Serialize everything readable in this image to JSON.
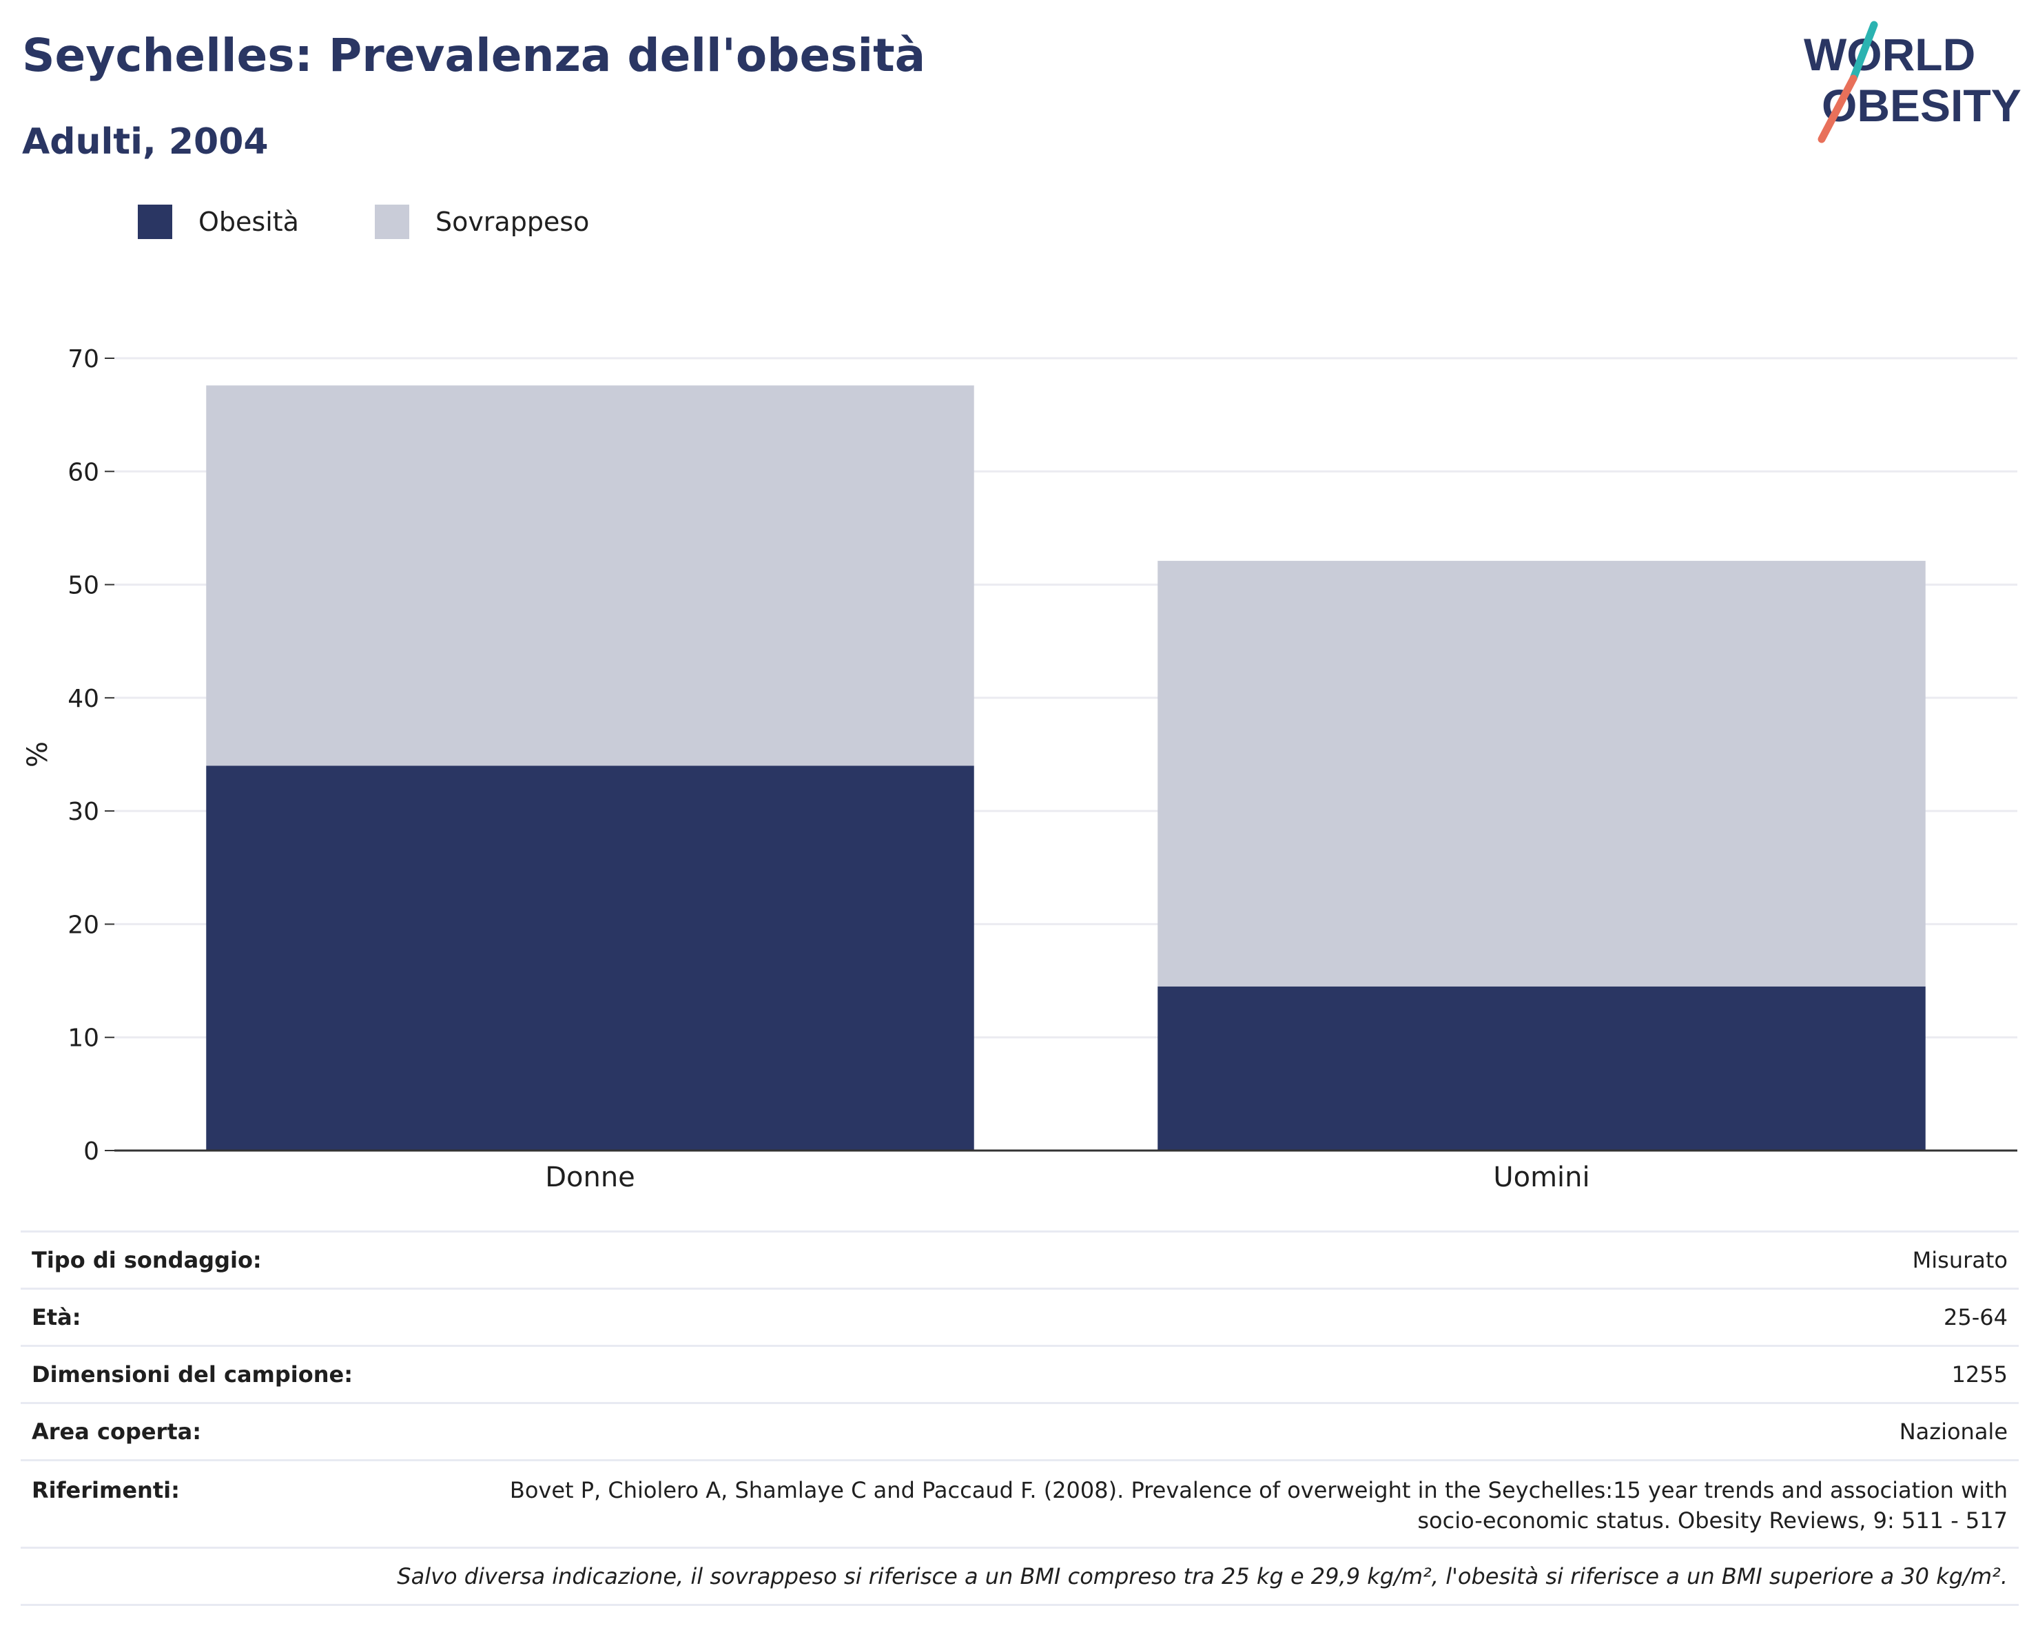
{
  "header": {
    "title": "Seychelles: Prevalenza dell'obesità",
    "subtitle": "Adulti, 2004"
  },
  "logo": {
    "line1": "WORLD",
    "line2": "OBESITY",
    "accent_teal": "#2bb3b1",
    "accent_coral": "#e8705a"
  },
  "legend": [
    {
      "label": "Obesità",
      "color": "#2a3663"
    },
    {
      "label": "Sovrappeso",
      "color": "#c9ccd8"
    }
  ],
  "chart_data": {
    "type": "bar",
    "stacked": true,
    "categories": [
      "Donne",
      "Uomini"
    ],
    "series": [
      {
        "name": "Obesità",
        "color": "#2a3663",
        "values": [
          34.0,
          14.5
        ]
      },
      {
        "name": "Sovrappeso",
        "color": "#c9ccd8",
        "values": [
          33.6,
          37.6
        ]
      }
    ],
    "ylabel": "%",
    "ylim": [
      0,
      70
    ],
    "yticks": [
      0,
      10,
      20,
      30,
      40,
      50,
      60,
      70
    ],
    "grid": true
  },
  "info": {
    "survey_type": {
      "label": "Tipo di sondaggio:",
      "value": "Misurato"
    },
    "age": {
      "label": "Età:",
      "value": "25-64"
    },
    "sample_size": {
      "label": "Dimensioni del campione:",
      "value": "1255"
    },
    "area": {
      "label": "Area coperta:",
      "value": "Nazionale"
    },
    "references": {
      "label": "Riferimenti:",
      "line1": "Bovet P, Chiolero A, Shamlaye C and Paccaud F. (2008). Prevalence of overweight in the Seychelles:15 year trends and association with",
      "line2": "socio-economic status. Obesity Reviews, 9: 511 - 517"
    },
    "note": "Salvo diversa indicazione, il sovrappeso si riferisce a un BMI compreso tra 25 kg e 29,9 kg/m², l'obesità si riferisce a un BMI superiore a 30 kg/m²."
  }
}
